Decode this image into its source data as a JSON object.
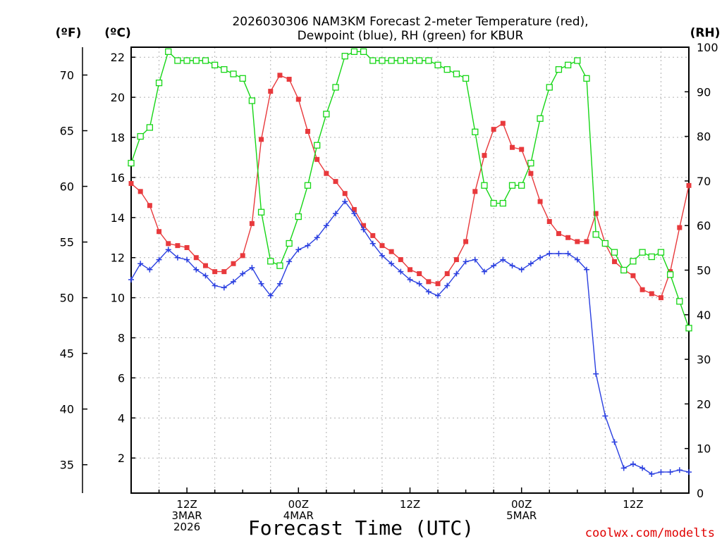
{
  "chart_data": {
    "type": "line",
    "title_lines": [
      "2026030306 NAM3KM Forecast 2-meter Temperature (red),",
      "Dewpoint (blue), RH (green) for KBUR"
    ],
    "units": {
      "fahrenheit": "(ºF)",
      "celsius": "(ºC)",
      "rh": "(RH)"
    },
    "xlabel": "Forecast Time (UTC)",
    "credit": "coolwx.com/modelts",
    "x_hours_start": 7,
    "x_hours_end": 67,
    "celsius_ticks": [
      2,
      4,
      6,
      8,
      10,
      12,
      14,
      16,
      18,
      20,
      22
    ],
    "fahrenheit_ticks": [
      35,
      40,
      45,
      50,
      55,
      60,
      65,
      70
    ],
    "rh_ticks": [
      0,
      10,
      20,
      30,
      40,
      50,
      60,
      70,
      80,
      90,
      100
    ],
    "ylim_celsius": [
      0.25,
      22.5
    ],
    "ylim_rh": [
      0,
      100
    ],
    "x_ticks": [
      {
        "hour": 13,
        "lines": [
          "12Z",
          "3MAR",
          "2026"
        ]
      },
      {
        "hour": 25,
        "lines": [
          "00Z",
          "4MAR"
        ]
      },
      {
        "hour": 37,
        "lines": [
          "12Z"
        ]
      },
      {
        "hour": 49,
        "lines": [
          "00Z",
          "5MAR"
        ]
      },
      {
        "hour": 61,
        "lines": [
          "12Z"
        ]
      }
    ],
    "series": [
      {
        "name": "Temperature",
        "unit": "C",
        "color": "#e8393c",
        "marker": "square-filled",
        "x": [
          7,
          8,
          9,
          10,
          11,
          12,
          13,
          14,
          15,
          16,
          17,
          18,
          19,
          20,
          21,
          22,
          23,
          24,
          25,
          26,
          27,
          28,
          29,
          30,
          31,
          32,
          33,
          34,
          35,
          36,
          37,
          38,
          39,
          40,
          41,
          42,
          43,
          44,
          45,
          46,
          47,
          48,
          49,
          50,
          51,
          52,
          53,
          54,
          55,
          56,
          57,
          58,
          59,
          60,
          61,
          62,
          63,
          64,
          65,
          66,
          67
        ],
        "values": [
          15.7,
          15.3,
          14.6,
          13.3,
          12.7,
          12.6,
          12.5,
          12.0,
          11.6,
          11.3,
          11.3,
          11.7,
          12.1,
          13.7,
          17.9,
          20.3,
          21.1,
          20.9,
          19.9,
          18.3,
          16.9,
          16.2,
          15.8,
          15.2,
          14.4,
          13.6,
          13.1,
          12.6,
          12.3,
          11.9,
          11.4,
          11.2,
          10.8,
          10.7,
          11.2,
          11.9,
          12.8,
          15.3,
          17.1,
          18.4,
          18.7,
          17.5,
          17.4,
          16.2,
          14.8,
          13.8,
          13.2,
          13.0,
          12.8,
          12.8,
          14.2,
          12.7,
          11.8,
          11.4,
          11.1,
          10.4,
          10.2,
          10.0,
          11.3,
          13.5,
          15.6
        ]
      },
      {
        "name": "Dewpoint",
        "unit": "C",
        "color": "#2a3fe0",
        "marker": "plus",
        "x": [
          7,
          8,
          9,
          10,
          11,
          12,
          13,
          14,
          15,
          16,
          17,
          18,
          19,
          20,
          21,
          22,
          23,
          24,
          25,
          26,
          27,
          28,
          29,
          30,
          31,
          32,
          33,
          34,
          35,
          36,
          37,
          38,
          39,
          40,
          41,
          42,
          43,
          44,
          45,
          46,
          47,
          48,
          49,
          50,
          51,
          52,
          53,
          54,
          55,
          56,
          57,
          58,
          59,
          60,
          61,
          62,
          63,
          64,
          65,
          66,
          67
        ],
        "values": [
          10.9,
          11.7,
          11.4,
          11.9,
          12.4,
          12.0,
          11.9,
          11.4,
          11.1,
          10.6,
          10.5,
          10.8,
          11.2,
          11.5,
          10.7,
          10.1,
          10.7,
          11.8,
          12.4,
          12.6,
          13.0,
          13.6,
          14.2,
          14.8,
          14.2,
          13.4,
          12.7,
          12.1,
          11.7,
          11.3,
          10.9,
          10.7,
          10.3,
          10.1,
          10.6,
          11.2,
          11.8,
          11.9,
          11.3,
          11.6,
          11.9,
          11.6,
          11.4,
          11.7,
          12.0,
          12.2,
          12.2,
          12.2,
          11.9,
          11.4,
          6.2,
          4.1,
          2.8,
          1.5,
          1.7,
          1.5,
          1.2,
          1.3,
          1.3,
          1.4,
          1.3
        ]
      },
      {
        "name": "RH",
        "unit": "%",
        "color": "#16d616",
        "marker": "square-open",
        "x": [
          7,
          8,
          9,
          10,
          11,
          12,
          13,
          14,
          15,
          16,
          17,
          18,
          19,
          20,
          21,
          22,
          23,
          24,
          25,
          26,
          27,
          28,
          29,
          30,
          31,
          32,
          33,
          34,
          35,
          36,
          37,
          38,
          39,
          40,
          41,
          42,
          43,
          44,
          45,
          46,
          47,
          48,
          49,
          50,
          51,
          52,
          53,
          54,
          55,
          56,
          57,
          58,
          59,
          60,
          61,
          62,
          63,
          64,
          65,
          66,
          67
        ],
        "values": [
          74,
          80,
          82,
          92,
          99,
          97,
          97,
          97,
          97,
          96,
          95,
          94,
          93,
          88,
          63,
          52,
          51,
          56,
          62,
          69,
          78,
          85,
          91,
          98,
          99,
          99,
          97,
          97,
          97,
          97,
          97,
          97,
          97,
          96,
          95,
          94,
          93,
          81,
          69,
          65,
          65,
          69,
          69,
          74,
          84,
          91,
          95,
          96,
          97,
          93,
          58,
          56,
          54,
          50,
          52,
          54,
          53,
          54,
          49,
          43,
          37
        ]
      }
    ]
  }
}
